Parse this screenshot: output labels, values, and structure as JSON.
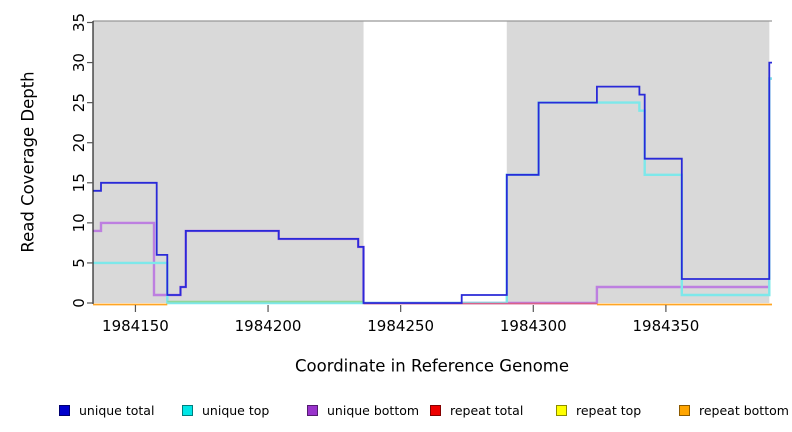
{
  "chart_data": {
    "type": "line",
    "subtype": "step-coverage",
    "xlabel": "Coordinate in Reference Genome",
    "ylabel": "Read Coverage Depth",
    "xlim": [
      1984134,
      1984390
    ],
    "ylim": [
      0,
      35
    ],
    "x_ticks": [
      1984150,
      1984200,
      1984250,
      1984300,
      1984350
    ],
    "y_ticks": [
      0,
      5,
      10,
      15,
      20,
      25,
      30,
      35
    ],
    "grid": false,
    "background_color": "#ffffff",
    "shaded_regions": [
      {
        "x0": 1984134,
        "x1": 1984236,
        "color": "#d9d9d9",
        "meaning": "repeat-region"
      },
      {
        "x0": 1984290,
        "x1": 1984389,
        "color": "#d9d9d9",
        "meaning": "repeat-region"
      }
    ],
    "top_border_color": "#999999",
    "series": [
      {
        "key": "unique_bottom",
        "name": "unique bottom",
        "color": "#bd7fe0",
        "steps": [
          [
            1984134,
            9
          ],
          [
            1984137,
            10
          ],
          [
            1984157,
            1
          ],
          [
            1984167,
            2
          ],
          [
            1984169,
            9
          ],
          [
            1984204,
            8
          ],
          [
            1984234,
            7
          ],
          [
            1984236,
            0
          ],
          [
            1984324,
            2
          ],
          [
            1984389,
            28
          ],
          [
            1984390,
            null
          ]
        ]
      },
      {
        "key": "unique_top",
        "name": "unique top",
        "color": "#7de8ea",
        "steps": [
          [
            1984134,
            5
          ],
          [
            1984162,
            0
          ],
          [
            1984290,
            16
          ],
          [
            1984302,
            25
          ],
          [
            1984340,
            24
          ],
          [
            1984342,
            16
          ],
          [
            1984356,
            1
          ],
          [
            1984389,
            28
          ],
          [
            1984390,
            null
          ]
        ]
      },
      {
        "key": "repeat_top",
        "name": "repeat top",
        "color": "#90d79a",
        "steps": [
          [
            1984162,
            0
          ],
          [
            1984236,
            null
          ]
        ]
      },
      {
        "key": "repeat_total",
        "name": "repeat total",
        "color": "#d9608a",
        "steps": [
          [
            1984236,
            0
          ],
          [
            1984324,
            null
          ]
        ]
      },
      {
        "key": "repeat_bottom",
        "name": "repeat bottom",
        "color": "#ffa524",
        "steps": [
          [
            1984134,
            0
          ],
          [
            1984162,
            null
          ],
          [
            1984324,
            0
          ],
          [
            1984390,
            null
          ]
        ]
      },
      {
        "key": "unique_total",
        "name": "unique total",
        "color": "#2a2ad8",
        "steps": [
          [
            1984134,
            14
          ],
          [
            1984137,
            15
          ],
          [
            1984158,
            6
          ],
          [
            1984162,
            1
          ],
          [
            1984167,
            2
          ],
          [
            1984169,
            9
          ],
          [
            1984204,
            8
          ],
          [
            1984234,
            7
          ],
          [
            1984236,
            0
          ],
          [
            1984273,
            1
          ],
          [
            1984290,
            16
          ],
          [
            1984302,
            25
          ],
          [
            1984324,
            27
          ],
          [
            1984340,
            26
          ],
          [
            1984342,
            18
          ],
          [
            1984356,
            3
          ],
          [
            1984389,
            30
          ],
          [
            1984390,
            null
          ]
        ]
      }
    ],
    "legend": {
      "position": "bottom",
      "items": [
        {
          "label": "unique total",
          "color": "#0000cc"
        },
        {
          "label": "unique top",
          "color": "#00e6e6"
        },
        {
          "label": "unique bottom",
          "color": "#9933cc"
        },
        {
          "label": "repeat total",
          "color": "#ee0000"
        },
        {
          "label": "repeat top",
          "color": "#ffff00"
        },
        {
          "label": "repeat bottom",
          "color": "#ffa500"
        }
      ]
    }
  }
}
